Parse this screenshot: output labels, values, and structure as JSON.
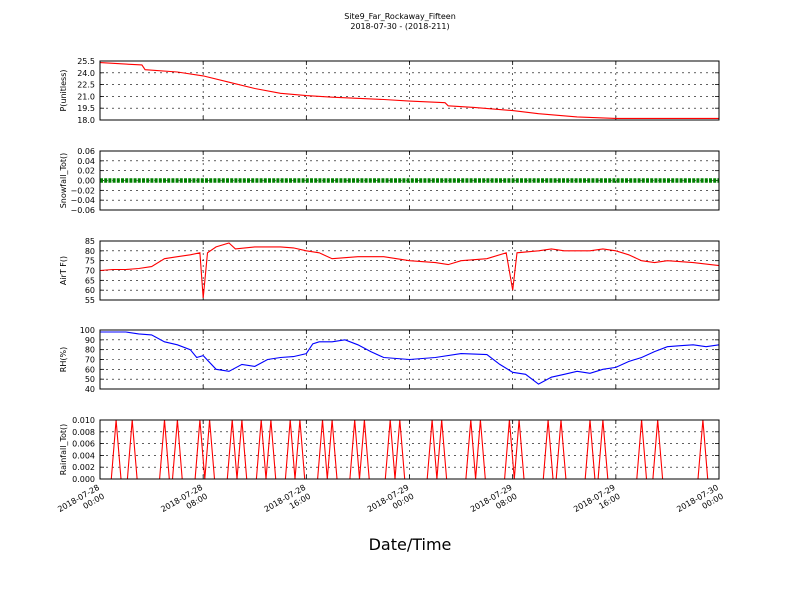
{
  "chart_data": {
    "type": "line",
    "title": "Site9_Far_Rockaway_Fifteen",
    "subtitle": "2018-07-30 - (2018-211)",
    "xlabel": "Date/Time",
    "x_range": [
      "2018-07-28 00:00",
      "2018-07-30 00:00"
    ],
    "x_ticks": [
      {
        "t": "2018-07-28 00:00",
        "line1": "2018-07-28",
        "line2": "00:00"
      },
      {
        "t": "2018-07-28 08:00",
        "line1": "2018-07-28",
        "line2": "08:00"
      },
      {
        "t": "2018-07-28 16:00",
        "line1": "2018-07-28",
        "line2": "16:00"
      },
      {
        "t": "2018-07-29 00:00",
        "line1": "2018-07-29",
        "line2": "00:00"
      },
      {
        "t": "2018-07-29 08:00",
        "line1": "2018-07-29",
        "line2": "08:00"
      },
      {
        "t": "2018-07-29 16:00",
        "line1": "2018-07-29",
        "line2": "16:00"
      },
      {
        "t": "2018-07-30 00:00",
        "line1": "2018-07-30",
        "line2": "00:00"
      }
    ],
    "grid": true,
    "panels": [
      {
        "ylabel": "P(unitless)",
        "ylim": [
          18.0,
          25.5
        ],
        "yticks": [
          "25.5",
          "24.0",
          "22.5",
          "21.0",
          "19.5",
          "18.0"
        ],
        "ytick_values": [
          25.5,
          24.0,
          22.5,
          21.0,
          19.5,
          18.0
        ],
        "color": "#ff0000",
        "style": "line",
        "points": [
          [
            "2018-07-28 00:00",
            25.3
          ],
          [
            "2018-07-28 02:00",
            25.1
          ],
          [
            "2018-07-28 03:15",
            25.0
          ],
          [
            "2018-07-28 03:30",
            24.4
          ],
          [
            "2018-07-28 06:00",
            24.1
          ],
          [
            "2018-07-28 08:00",
            23.6
          ],
          [
            "2018-07-28 10:00",
            22.8
          ],
          [
            "2018-07-28 12:00",
            22.0
          ],
          [
            "2018-07-28 14:00",
            21.4
          ],
          [
            "2018-07-28 16:00",
            21.1
          ],
          [
            "2018-07-28 18:00",
            20.9
          ],
          [
            "2018-07-28 22:00",
            20.6
          ],
          [
            "2018-07-29 00:00",
            20.4
          ],
          [
            "2018-07-29 02:45",
            20.2
          ],
          [
            "2018-07-29 03:00",
            19.8
          ],
          [
            "2018-07-29 05:00",
            19.6
          ],
          [
            "2018-07-29 08:00",
            19.2
          ],
          [
            "2018-07-29 10:00",
            18.8
          ],
          [
            "2018-07-29 13:00",
            18.4
          ],
          [
            "2018-07-29 16:00",
            18.2
          ],
          [
            "2018-07-29 20:00",
            18.2
          ],
          [
            "2018-07-30 00:00",
            18.2
          ]
        ]
      },
      {
        "ylabel": "Snowfall_Tot()",
        "ylim": [
          -0.06,
          0.06
        ],
        "yticks": [
          "0.06",
          "0.04",
          "0.02",
          "0.00",
          "−0.02",
          "−0.04",
          "−0.06"
        ],
        "ytick_values": [
          0.06,
          0.04,
          0.02,
          0.0,
          -0.02,
          -0.04,
          -0.06
        ],
        "color": "#008000",
        "style": "markers",
        "constant_value": 0.0
      },
      {
        "ylabel": "AirT F()",
        "ylim": [
          55,
          85
        ],
        "yticks": [
          "85",
          "80",
          "75",
          "70",
          "65",
          "60",
          "55"
        ],
        "ytick_values": [
          85,
          80,
          75,
          70,
          65,
          60,
          55
        ],
        "color": "#ff0000",
        "style": "line",
        "points": [
          [
            "2018-07-28 00:00",
            70
          ],
          [
            "2018-07-28 01:00",
            70.5
          ],
          [
            "2018-07-28 02:00",
            70.5
          ],
          [
            "2018-07-28 03:00",
            71
          ],
          [
            "2018-07-28 04:00",
            72
          ],
          [
            "2018-07-28 05:00",
            76
          ],
          [
            "2018-07-28 06:00",
            77
          ],
          [
            "2018-07-28 07:00",
            78
          ],
          [
            "2018-07-28 07:45",
            79
          ],
          [
            "2018-07-28 08:00",
            56
          ],
          [
            "2018-07-28 08:20",
            79
          ],
          [
            "2018-07-28 09:00",
            82
          ],
          [
            "2018-07-28 10:00",
            84
          ],
          [
            "2018-07-28 10:30",
            81
          ],
          [
            "2018-07-28 12:00",
            82
          ],
          [
            "2018-07-28 14:00",
            82
          ],
          [
            "2018-07-28 15:00",
            81.5
          ],
          [
            "2018-07-28 16:00",
            80
          ],
          [
            "2018-07-28 17:00",
            79
          ],
          [
            "2018-07-28 18:00",
            76
          ],
          [
            "2018-07-28 20:00",
            77
          ],
          [
            "2018-07-28 22:00",
            77
          ],
          [
            "2018-07-29 00:00",
            75
          ],
          [
            "2018-07-29 02:00",
            74
          ],
          [
            "2018-07-29 03:00",
            73
          ],
          [
            "2018-07-29 04:00",
            75
          ],
          [
            "2018-07-29 06:00",
            76
          ],
          [
            "2018-07-29 07:30",
            79
          ],
          [
            "2018-07-29 08:00",
            60
          ],
          [
            "2018-07-29 08:20",
            79
          ],
          [
            "2018-07-29 10:00",
            80
          ],
          [
            "2018-07-29 11:00",
            81
          ],
          [
            "2018-07-29 12:00",
            80
          ],
          [
            "2018-07-29 14:00",
            80
          ],
          [
            "2018-07-29 15:00",
            81
          ],
          [
            "2018-07-29 16:00",
            80
          ],
          [
            "2018-07-29 17:00",
            78
          ],
          [
            "2018-07-29 18:00",
            75
          ],
          [
            "2018-07-29 19:00",
            74
          ],
          [
            "2018-07-29 20:00",
            75
          ],
          [
            "2018-07-29 22:00",
            74
          ],
          [
            "2018-07-30 00:00",
            72.5
          ]
        ]
      },
      {
        "ylabel": "RH(%)",
        "ylim": [
          40,
          100
        ],
        "yticks": [
          "100",
          "90",
          "80",
          "70",
          "60",
          "50",
          "40"
        ],
        "ytick_values": [
          100,
          90,
          80,
          70,
          60,
          50,
          40
        ],
        "color": "#0000ff",
        "style": "line",
        "points": [
          [
            "2018-07-28 00:00",
            98
          ],
          [
            "2018-07-28 02:00",
            98
          ],
          [
            "2018-07-28 03:00",
            96
          ],
          [
            "2018-07-28 04:00",
            95
          ],
          [
            "2018-07-28 05:00",
            88
          ],
          [
            "2018-07-28 06:00",
            85
          ],
          [
            "2018-07-28 07:00",
            80
          ],
          [
            "2018-07-28 07:30",
            72
          ],
          [
            "2018-07-28 08:00",
            74
          ],
          [
            "2018-07-28 09:00",
            60
          ],
          [
            "2018-07-28 10:00",
            58
          ],
          [
            "2018-07-28 11:00",
            65
          ],
          [
            "2018-07-28 12:00",
            63
          ],
          [
            "2018-07-28 13:00",
            70
          ],
          [
            "2018-07-28 14:00",
            72
          ],
          [
            "2018-07-28 15:00",
            73
          ],
          [
            "2018-07-28 16:00",
            76
          ],
          [
            "2018-07-28 16:30",
            86
          ],
          [
            "2018-07-28 17:00",
            88
          ],
          [
            "2018-07-28 18:00",
            88
          ],
          [
            "2018-07-28 19:00",
            90
          ],
          [
            "2018-07-28 20:00",
            85
          ],
          [
            "2018-07-28 21:00",
            78
          ],
          [
            "2018-07-28 22:00",
            72
          ],
          [
            "2018-07-29 00:00",
            70
          ],
          [
            "2018-07-29 02:00",
            72
          ],
          [
            "2018-07-29 04:00",
            76
          ],
          [
            "2018-07-29 06:00",
            75
          ],
          [
            "2018-07-29 07:00",
            65
          ],
          [
            "2018-07-29 08:00",
            57
          ],
          [
            "2018-07-29 09:00",
            55
          ],
          [
            "2018-07-29 10:00",
            45
          ],
          [
            "2018-07-29 11:00",
            52
          ],
          [
            "2018-07-29 12:00",
            55
          ],
          [
            "2018-07-29 13:00",
            58
          ],
          [
            "2018-07-29 14:00",
            56
          ],
          [
            "2018-07-29 15:00",
            60
          ],
          [
            "2018-07-29 16:00",
            62
          ],
          [
            "2018-07-29 17:00",
            68
          ],
          [
            "2018-07-29 18:00",
            72
          ],
          [
            "2018-07-29 19:00",
            78
          ],
          [
            "2018-07-29 20:00",
            83
          ],
          [
            "2018-07-29 21:00",
            84
          ],
          [
            "2018-07-29 22:00",
            85
          ],
          [
            "2018-07-29 23:00",
            83
          ],
          [
            "2018-07-30 00:00",
            85
          ]
        ]
      },
      {
        "ylabel": "Rainfall_Tot()",
        "ylim": [
          0.0,
          0.01
        ],
        "yticks": [
          "0.010",
          "0.008",
          "0.006",
          "0.004",
          "0.002",
          "0.000"
        ],
        "ytick_values": [
          0.01,
          0.008,
          0.006,
          0.004,
          0.002,
          0.0
        ],
        "color": "#ff0000",
        "style": "spikes",
        "spike_value": 0.01,
        "spike_times": [
          "2018-07-28 01:15",
          "2018-07-28 02:30",
          "2018-07-28 05:00",
          "2018-07-28 06:00",
          "2018-07-28 07:45",
          "2018-07-28 08:30",
          "2018-07-28 10:15",
          "2018-07-28 11:00",
          "2018-07-28 12:30",
          "2018-07-28 13:15",
          "2018-07-28 14:45",
          "2018-07-28 15:30",
          "2018-07-28 17:15",
          "2018-07-28 18:00",
          "2018-07-28 19:45",
          "2018-07-28 20:30",
          "2018-07-28 22:30",
          "2018-07-28 23:15",
          "2018-07-29 01:45",
          "2018-07-29 02:30",
          "2018-07-29 04:45",
          "2018-07-29 05:30",
          "2018-07-29 07:45",
          "2018-07-29 08:30",
          "2018-07-29 10:45",
          "2018-07-29 11:45",
          "2018-07-29 14:00",
          "2018-07-29 15:00",
          "2018-07-29 18:00",
          "2018-07-29 19:15",
          "2018-07-29 22:45"
        ]
      }
    ]
  }
}
